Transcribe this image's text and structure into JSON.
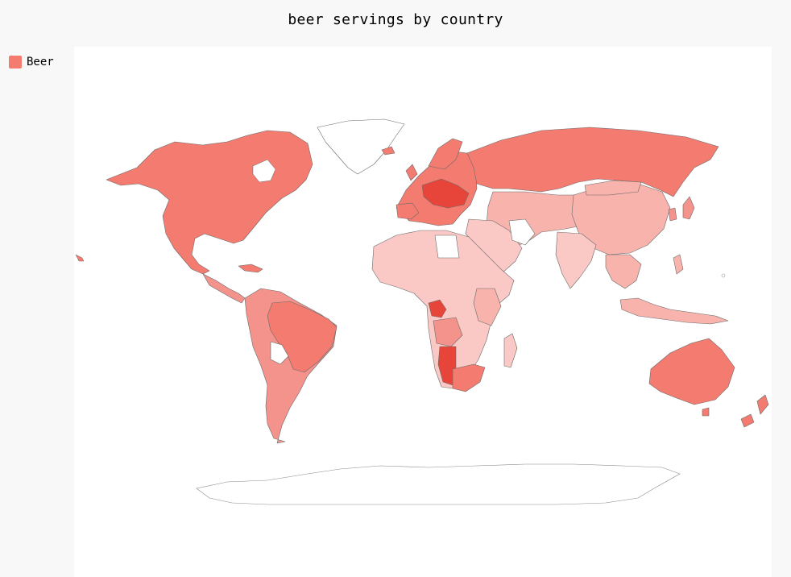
{
  "title": "beer servings by country",
  "legend": {
    "label": "Beer",
    "color": "#f47b6f"
  },
  "colors": {
    "background": "#f8f8f8",
    "plot": "#ffffff",
    "high": "#e8453a",
    "medium_high": "#f47b6f",
    "medium": "#f3938b",
    "low": "#f8b3ad",
    "very_low": "#fbc9c5",
    "no_data": "#ffffff"
  },
  "chart_data": {
    "type": "choropleth",
    "title": "beer servings by country",
    "series": [
      {
        "name": "Beer"
      }
    ],
    "legend_position": "top-left"
  }
}
